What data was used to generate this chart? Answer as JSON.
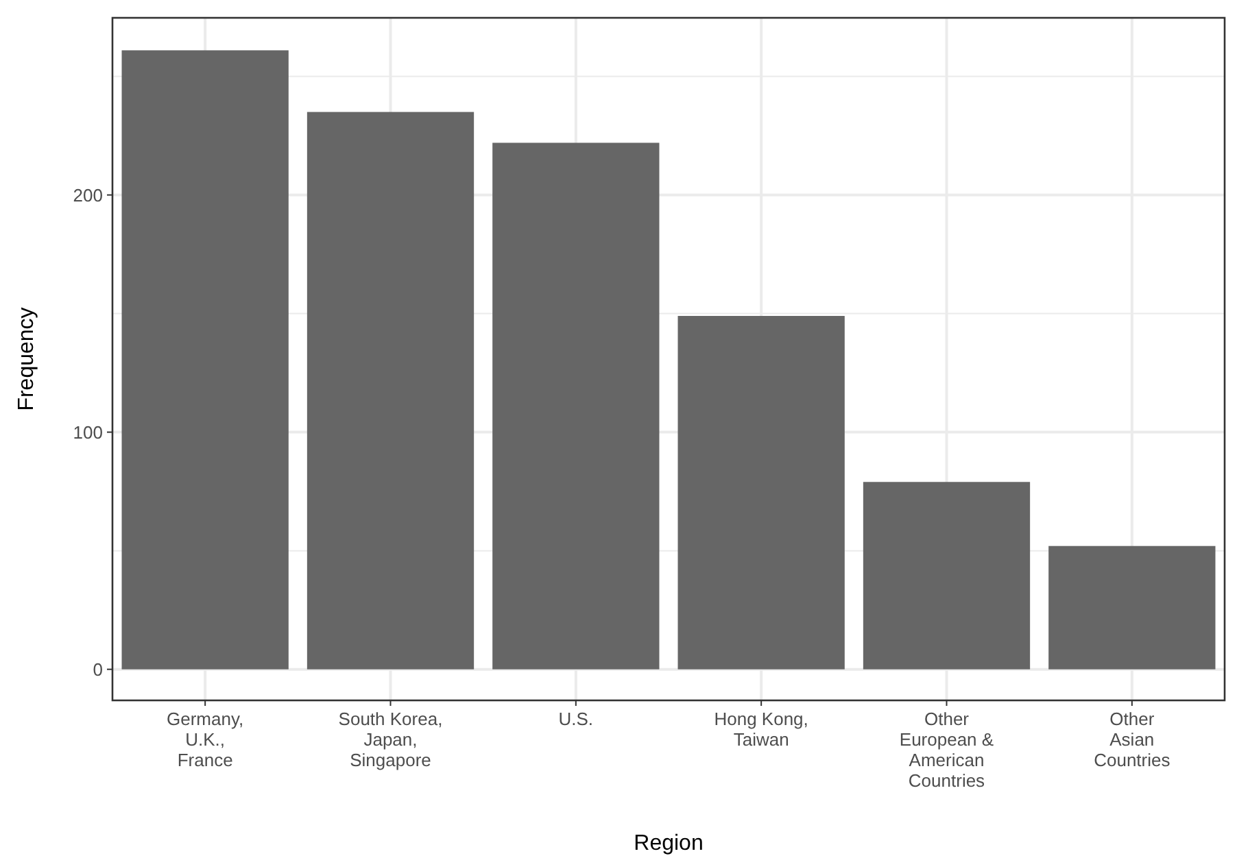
{
  "chart_data": {
    "type": "bar",
    "xlabel": "Region",
    "ylabel": "Frequency",
    "categories": [
      "Germany,\nU.K.,\nFrance",
      "South Korea,\nJapan,\nSingapore",
      "U.S.",
      "Hong Kong,\nTaiwan",
      "Other\nEuropean &\nAmerican\nCountries",
      "Other\nAsian\nCountries"
    ],
    "values": [
      261,
      235,
      222,
      149,
      79,
      52
    ],
    "color": "#666666",
    "ylim": [
      -13.1,
      274.7
    ],
    "yticks": [
      0,
      100,
      200
    ],
    "grid": true
  }
}
